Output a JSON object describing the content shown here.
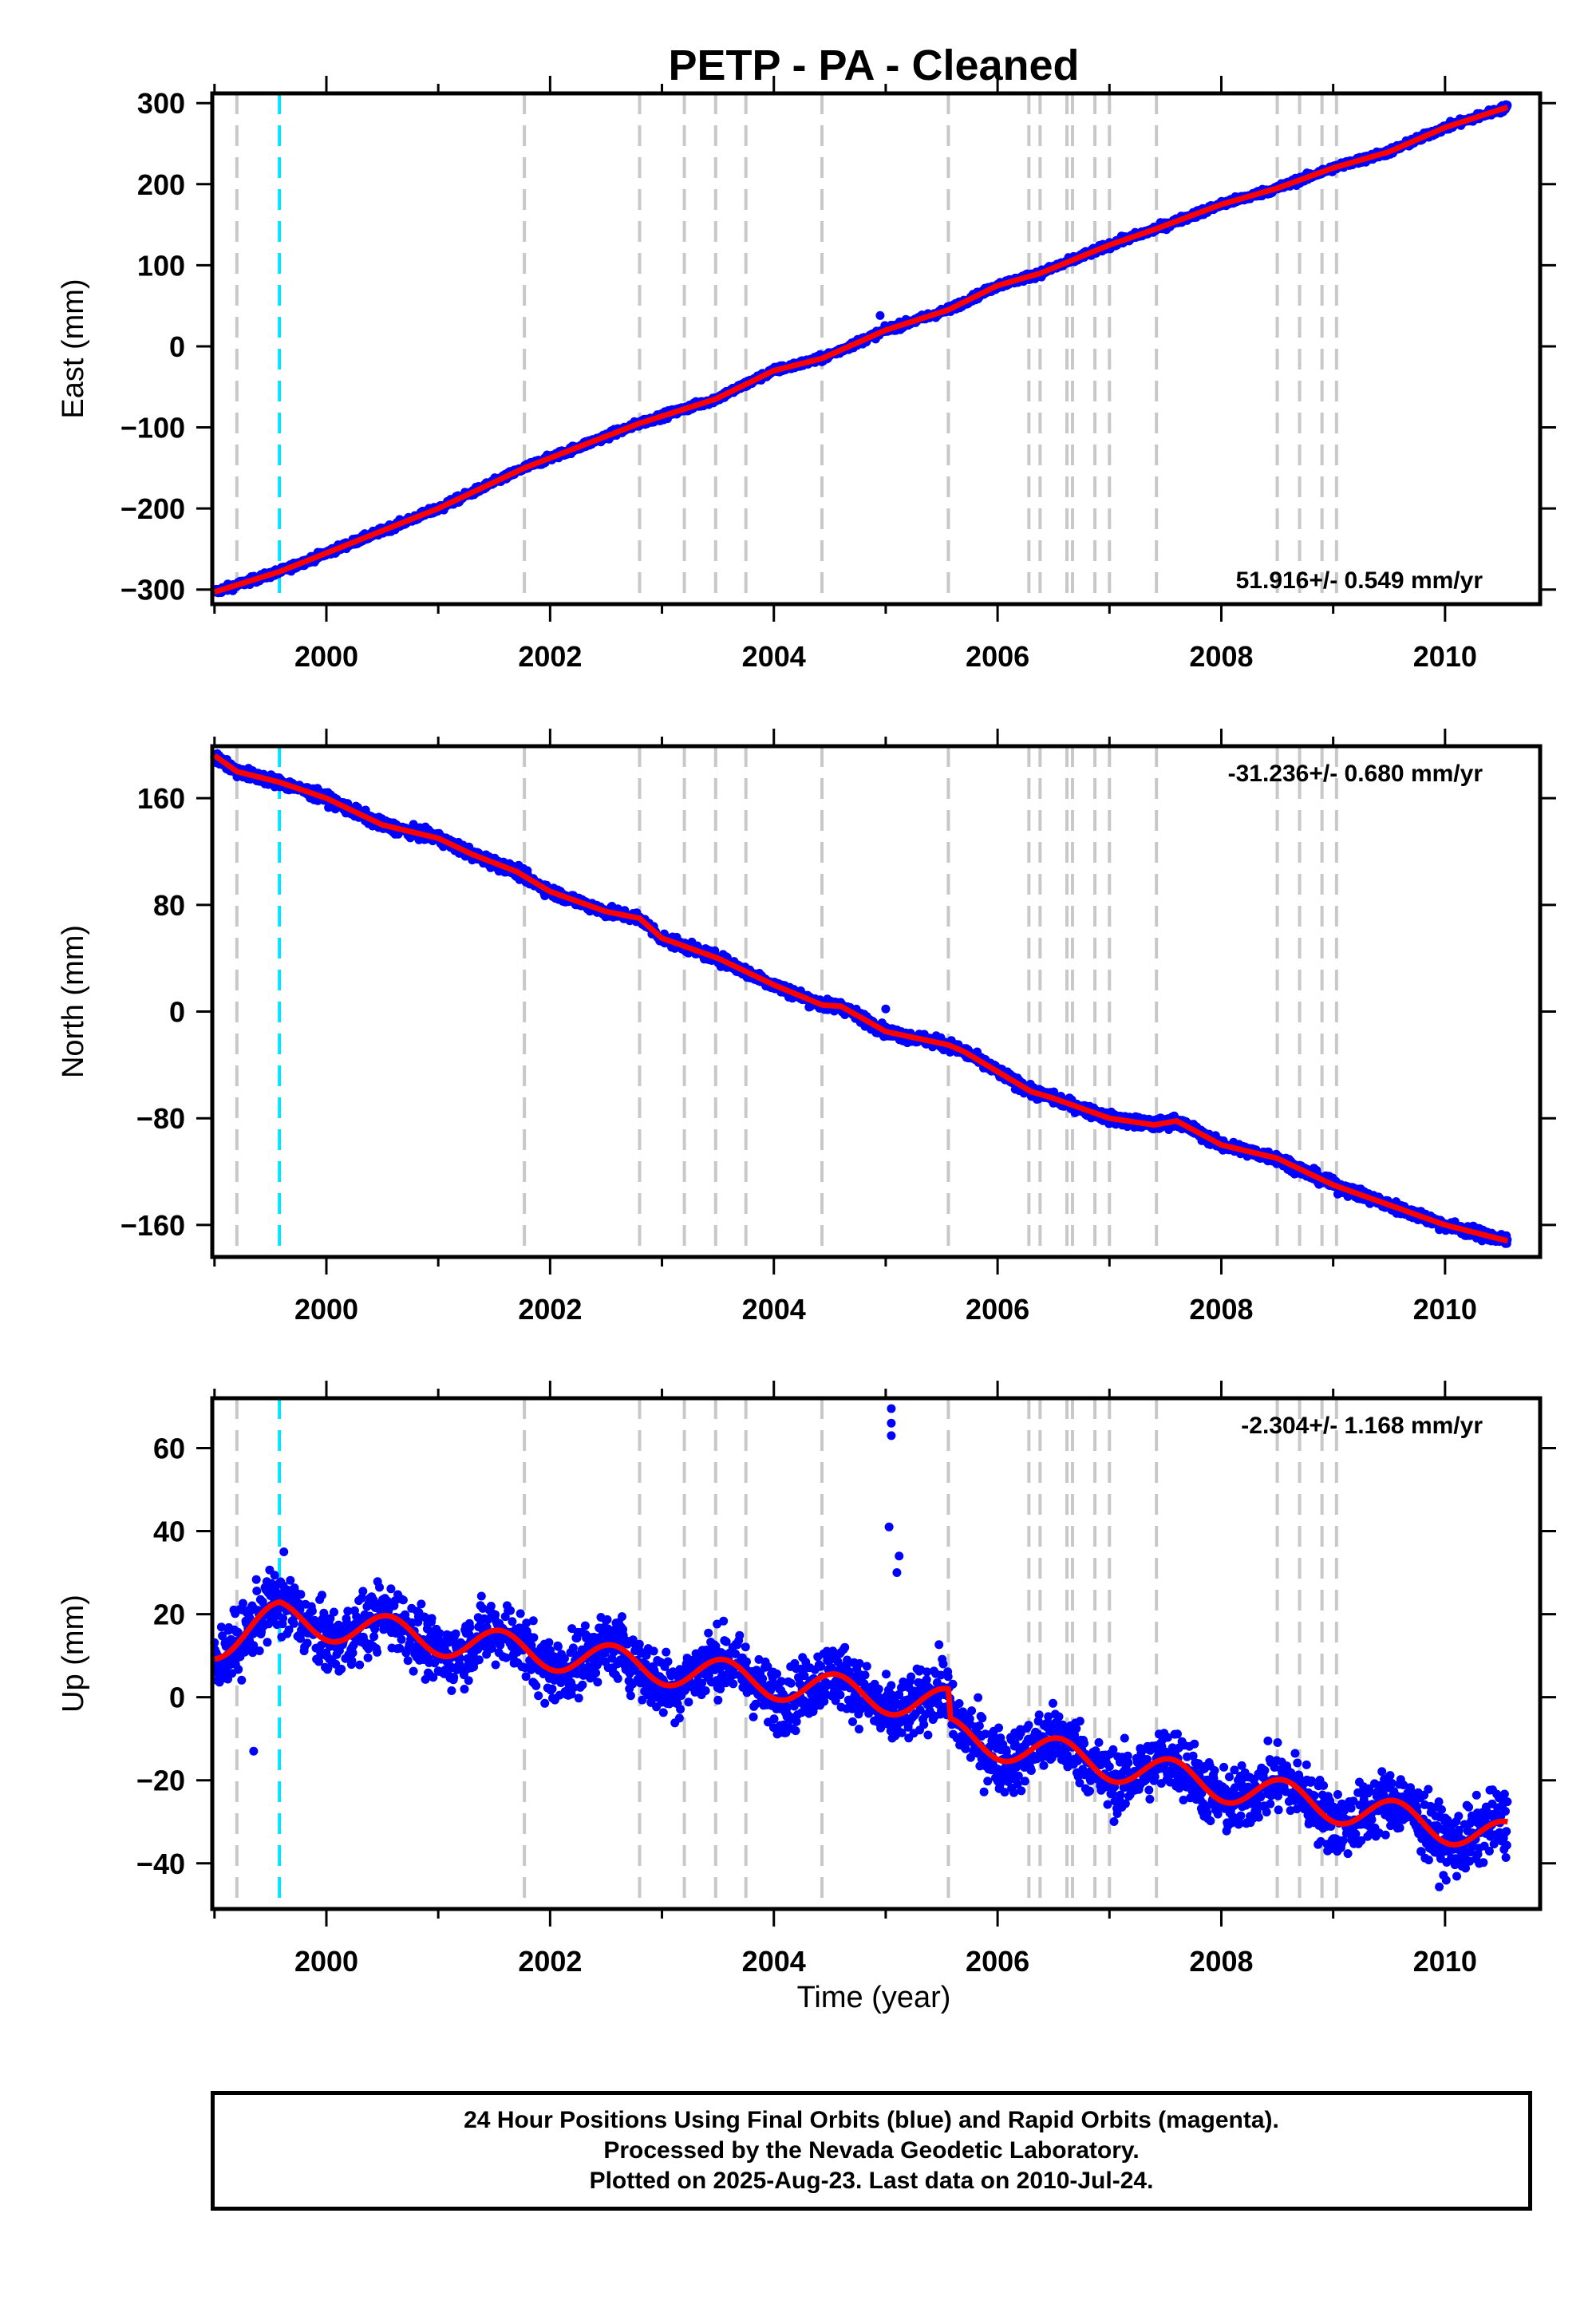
{
  "title": "PETP  - PA - Cleaned",
  "xlabel": "Time (year)",
  "footer": [
    "24 Hour Positions Using Final Orbits (blue) and Rapid Orbits (magenta).",
    "Processed by the Nevada Geodetic Laboratory.",
    "Plotted on 2025-Aug-23. Last data on 2010-Jul-24."
  ],
  "colors": {
    "data_points": "#0000ff",
    "model_line": "#ff0000",
    "event_line": "#c8c8c8",
    "equipment_line": "#00e5ff"
  },
  "event_lines": [
    1999.2,
    2001.77,
    2002.8,
    2003.2,
    2003.48,
    2003.75,
    2004.43,
    2005.56,
    2006.28,
    2006.38,
    2006.62,
    2006.67,
    2006.87,
    2007.0,
    2007.42,
    2008.5,
    2008.7,
    2008.9,
    2009.03
  ],
  "equipment_lines": [
    1999.58
  ],
  "chart_data": [
    {
      "type": "scatter",
      "name": "east",
      "ylabel": "East (mm)",
      "rate_label": "51.916+/- 0.549 mm/yr",
      "xlim": [
        1998.98,
        2010.85
      ],
      "ylim": [
        -318,
        312
      ],
      "xticks": [
        2000,
        2002,
        2004,
        2006,
        2008,
        2010
      ],
      "yticks": [
        -300,
        -200,
        -100,
        0,
        100,
        200,
        300
      ],
      "ytick_labels": [
        "−300",
        "−200",
        "−100",
        "0",
        "100",
        "200",
        "300"
      ],
      "trend": {
        "x": [
          1999.0,
          1999.58,
          2000.0,
          2001.0,
          2001.77,
          2002.8,
          2003.48,
          2004.0,
          2004.43,
          2005.0,
          2005.56,
          2006.0,
          2006.38,
          2007.0,
          2007.42,
          2008.0,
          2008.5,
          2009.0,
          2009.5,
          2010.0,
          2010.56
        ],
        "y": [
          -303,
          -278,
          -255,
          -200,
          -150,
          -95,
          -65,
          -30,
          -15,
          20,
          45,
          75,
          90,
          125,
          145,
          175,
          195,
          220,
          240,
          270,
          295
        ]
      },
      "noise": 3.0,
      "spikes": [
        {
          "x": 2004.95,
          "y": 38
        },
        {
          "x": 2001.05,
          "y": -202
        }
      ],
      "rate_anchor": "bottom"
    },
    {
      "type": "scatter",
      "name": "north",
      "ylabel": "North (mm)",
      "rate_label": "-31.236+/- 0.680 mm/yr",
      "xlim": [
        1998.98,
        2010.85
      ],
      "ylim": [
        -184,
        199
      ],
      "xticks": [
        2000,
        2002,
        2004,
        2006,
        2008,
        2010
      ],
      "yticks": [
        -160,
        -80,
        0,
        80,
        160
      ],
      "ytick_labels": [
        "−160",
        "−80",
        "0",
        "80",
        "160"
      ],
      "trend": {
        "x": [
          1999.0,
          1999.2,
          1999.58,
          2000.0,
          2000.5,
          2001.0,
          2001.3,
          2001.7,
          2002.0,
          2002.5,
          2002.8,
          2003.0,
          2003.5,
          2004.0,
          2004.43,
          2004.6,
          2005.0,
          2005.56,
          2005.7,
          2006.0,
          2006.3,
          2006.5,
          2007.0,
          2007.4,
          2007.6,
          2008.0,
          2008.5,
          2009.0,
          2009.5,
          2010.0,
          2010.56
        ],
        "y": [
          192,
          180,
          172,
          160,
          140,
          130,
          118,
          105,
          90,
          75,
          70,
          55,
          40,
          20,
          5,
          4,
          -15,
          -25,
          -30,
          -45,
          -60,
          -65,
          -80,
          -85,
          -82,
          -100,
          -110,
          -130,
          -145,
          -160,
          -172
        ]
      },
      "noise": 3.0,
      "spikes": [
        {
          "x": 2005.0,
          "y": 2
        }
      ],
      "rate_anchor": "top"
    },
    {
      "type": "scatter",
      "name": "up",
      "ylabel": "Up (mm)",
      "rate_label": "-2.304+/- 1.168 mm/yr",
      "xlim": [
        1998.98,
        2010.85
      ],
      "ylim": [
        -51,
        72
      ],
      "xticks": [
        2000,
        2002,
        2004,
        2006,
        2008,
        2010
      ],
      "yticks": [
        -40,
        -20,
        0,
        20,
        40,
        60
      ],
      "ytick_labels": [
        "−40",
        "−20",
        "0",
        "20",
        "40",
        "60"
      ],
      "trend": {
        "x": [
          1999.0,
          1999.58,
          2005.56,
          2005.57,
          2010.56
        ],
        "y": [
          13,
          19,
          -2,
          -9,
          -34
        ]
      },
      "seasonal_amplitude": 4,
      "noise": 5.5,
      "spikes": [
        {
          "x": 2005.05,
          "y": 69.5
        },
        {
          "x": 2005.05,
          "y": 66.0
        },
        {
          "x": 2005.05,
          "y": 63
        },
        {
          "x": 2005.03,
          "y": 41
        },
        {
          "x": 2005.12,
          "y": 34
        },
        {
          "x": 2005.1,
          "y": 30
        },
        {
          "x": 1999.35,
          "y": -13
        },
        {
          "x": 1999.62,
          "y": 35
        }
      ],
      "rate_anchor": "top"
    }
  ]
}
